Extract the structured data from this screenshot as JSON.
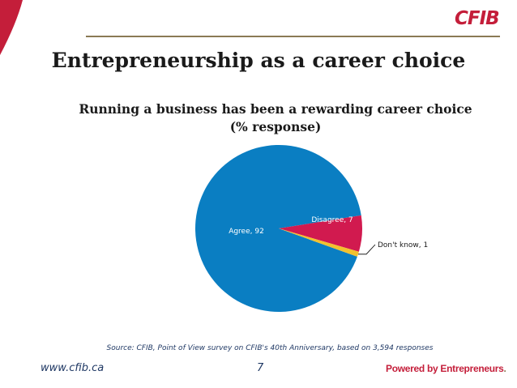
{
  "slide": {
    "title": "Entrepreneurship as a career choice",
    "logo": "CFIB",
    "source": "Source:  CFIB, Point of View survey on CFIB's 40th Anniversary, based on 3,594 responses",
    "website": "www.cfib.ca",
    "page_number": "7",
    "tagline": "Powered by Entrepreneurs",
    "tagline_dot": ".",
    "colors": {
      "brand_red": "#c41e3a",
      "rule_gold": "#8a7a55",
      "footer_blue": "#1f3864"
    }
  },
  "chart_data": {
    "type": "pie",
    "title_line1": "Running a business has been a rewarding career choice",
    "title_line2": "(% response)",
    "slices": [
      {
        "name": "Agree",
        "value": 92,
        "label": "Agree, 92",
        "color": "#0a7ec2",
        "label_color": "#ffffff"
      },
      {
        "name": "Disagree",
        "value": 7,
        "label": "Disagree, 7",
        "color": "#d11a4f",
        "label_color": "#ffffff"
      },
      {
        "name": "Don't know",
        "value": 1,
        "label": "Don't know, 1",
        "color": "#f2c12e",
        "label_color": "#1a1a1a"
      }
    ],
    "start_angle_deg": 19.8
  }
}
